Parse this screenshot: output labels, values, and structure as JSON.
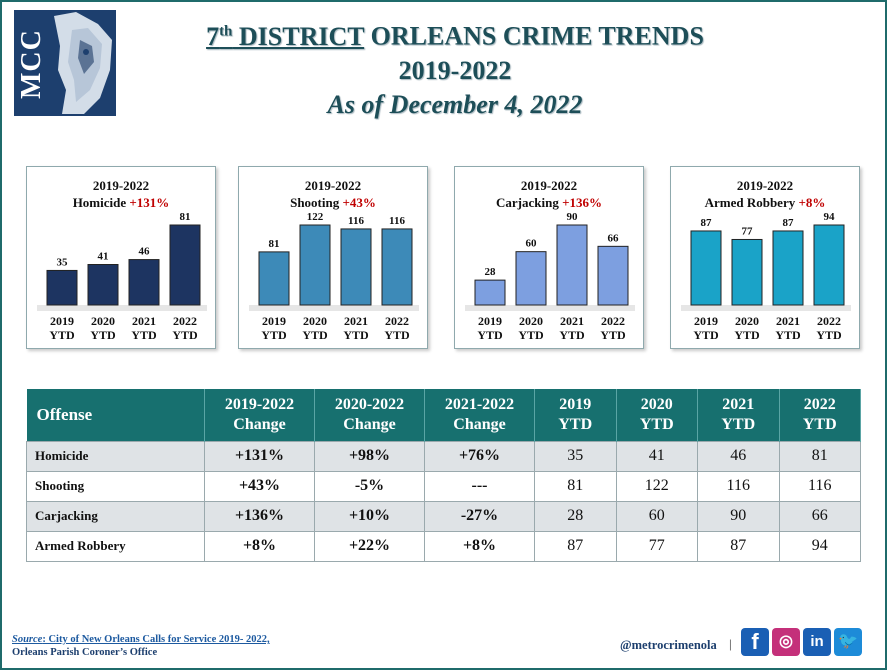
{
  "logo": {
    "text": "MCC"
  },
  "title": {
    "line1_prefix": "7",
    "line1_sup": "th",
    "line1_district": " DISTRICT",
    "line1_rest": " ORLEANS CRIME TRENDS",
    "line2": "2019-2022",
    "line3": "As of December 4, 2022"
  },
  "chart_data": [
    {
      "type": "bar",
      "title": "2019-2022",
      "subtitle": "Homicide",
      "change": "+131%",
      "categories": [
        "2019 YTD",
        "2020 YTD",
        "2021 YTD",
        "2022 YTD"
      ],
      "values": [
        35,
        41,
        46,
        81
      ],
      "color": "#1d3461"
    },
    {
      "type": "bar",
      "title": "2019-2022",
      "subtitle": "Shooting",
      "change": "+43%",
      "categories": [
        "2019 YTD",
        "2020 YTD",
        "2021 YTD",
        "2022 YTD"
      ],
      "values": [
        81,
        122,
        116,
        116
      ],
      "color": "#3d8ab8"
    },
    {
      "type": "bar",
      "title": "2019-2022",
      "subtitle": "Carjacking",
      "change": "+136%",
      "categories": [
        "2019 YTD",
        "2020 YTD",
        "2021 YTD",
        "2022 YTD"
      ],
      "values": [
        28,
        60,
        90,
        66
      ],
      "color": "#7d9fe0"
    },
    {
      "type": "bar",
      "title": "2019-2022",
      "subtitle": "Armed Robbery",
      "change": "+8%",
      "categories": [
        "2019 YTD",
        "2020 YTD",
        "2021 YTD",
        "2022 YTD"
      ],
      "values": [
        87,
        77,
        87,
        94
      ],
      "color": "#1aa3c8"
    }
  ],
  "table": {
    "headers": [
      {
        "l1": "Offense",
        "l2": ""
      },
      {
        "l1": "2019-2022",
        "l2": "Change"
      },
      {
        "l1": "2020-2022",
        "l2": "Change"
      },
      {
        "l1": "2021-2022",
        "l2": "Change"
      },
      {
        "l1": "2019",
        "l2": "YTD"
      },
      {
        "l1": "2020",
        "l2": "YTD"
      },
      {
        "l1": "2021",
        "l2": "YTD"
      },
      {
        "l1": "2022",
        "l2": "YTD"
      }
    ],
    "rows": [
      {
        "offense": "Homicide",
        "c1": "+131%",
        "c2": "+98%",
        "c3": "+76%",
        "y2019": "35",
        "y2020": "41",
        "y2021": "46",
        "y2022": "81"
      },
      {
        "offense": "Shooting",
        "c1": "+43%",
        "c2": "-5%",
        "c3": "---",
        "y2019": "81",
        "y2020": "122",
        "y2021": "116",
        "y2022": "116"
      },
      {
        "offense": "Carjacking",
        "c1": "+136%",
        "c2": "+10%",
        "c3": "-27%",
        "y2019": "28",
        "y2020": "60",
        "y2021": "90",
        "y2022": "66"
      },
      {
        "offense": "Armed Robbery",
        "c1": "+8%",
        "c2": "+22%",
        "c3": "+8%",
        "y2019": "87",
        "y2020": "77",
        "y2021": "87",
        "y2022": "94"
      }
    ]
  },
  "footer": {
    "source_label": "Source",
    "source_text": ": City of New Orleans Calls for Service 2019- 2022,",
    "source_line2": "Orleans Parish Coroner’s Office",
    "handle": "@metrocrimenola",
    "separator": "|"
  },
  "social": {
    "facebook": "f",
    "instagram": "◎",
    "linkedin": "in",
    "twitter": "🐦"
  },
  "colors": {
    "positive": "#c00000",
    "negative": "#3a8a3a",
    "header": "#17706f",
    "title": "#1d4e58"
  }
}
